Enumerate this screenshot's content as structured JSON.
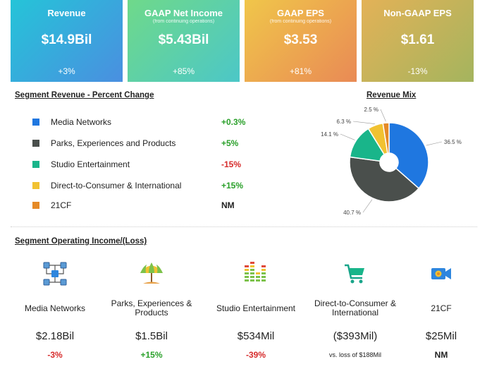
{
  "kpis": [
    {
      "title": "Revenue",
      "subtitle": "",
      "value": "$14.9Bil",
      "change": "+3%"
    },
    {
      "title": "GAAP Net Income",
      "subtitle": "(from continuing operations)",
      "value": "$5.43Bil",
      "change": "+85%"
    },
    {
      "title": "GAAP EPS",
      "subtitle": "(from continuing operations)",
      "value": "$3.53",
      "change": "+81%"
    },
    {
      "title": "Non-GAAP EPS",
      "subtitle": "",
      "value": "$1.61",
      "change": "-13%"
    }
  ],
  "segment_revenue": {
    "title": "Segment Revenue - Percent Change",
    "rows": [
      {
        "name": "Media Networks",
        "change": "+0.3%",
        "color": "#1f77e0"
      },
      {
        "name": "Parks, Experiences and Products",
        "change": "+5%",
        "color": "#4a4f4c"
      },
      {
        "name": "Studio Entertainment",
        "change": "-15%",
        "color": "#19b58a"
      },
      {
        "name": "Direct-to-Consumer & International",
        "change": "+15%",
        "color": "#f1c232"
      },
      {
        "name": "21CF",
        "change": "NM",
        "color": "#e58a27"
      }
    ]
  },
  "chart_data": {
    "type": "pie",
    "title": "Revenue Mix",
    "categories": [
      "Media Networks",
      "Parks, Experiences and Products",
      "Studio Entertainment",
      "Direct-to-Consumer & International",
      "21CF"
    ],
    "values": [
      36.5,
      40.7,
      14.1,
      6.3,
      2.5
    ],
    "labels": [
      "36.5 %",
      "40.7 %",
      "14.1 %",
      "6.3 %",
      "2.5 %"
    ],
    "colors": [
      "#1f77e0",
      "#4a4f4c",
      "#19b58a",
      "#f1c232",
      "#e58a27"
    ],
    "donut": true
  },
  "operating_income": {
    "title": "Segment Operating Income/(Loss)",
    "items": [
      {
        "name": "Media Networks",
        "value": "$2.18Bil",
        "change": "-3%",
        "icon": "network-icon"
      },
      {
        "name": "Parks, Experiences & Products",
        "value": "$1.5Bil",
        "change": "+15%",
        "icon": "umbrella-icon"
      },
      {
        "name": "Studio Entertainment",
        "value": "$534Mil",
        "change": "-39%",
        "icon": "equalizer-icon"
      },
      {
        "name": "Direct-to-Consumer & International",
        "value": "($393Mil)",
        "change": "vs. loss of $188Mil",
        "icon": "cart-icon"
      },
      {
        "name": "21CF",
        "value": "$25Mil",
        "change": "NM",
        "icon": "video-camera-icon"
      }
    ]
  }
}
